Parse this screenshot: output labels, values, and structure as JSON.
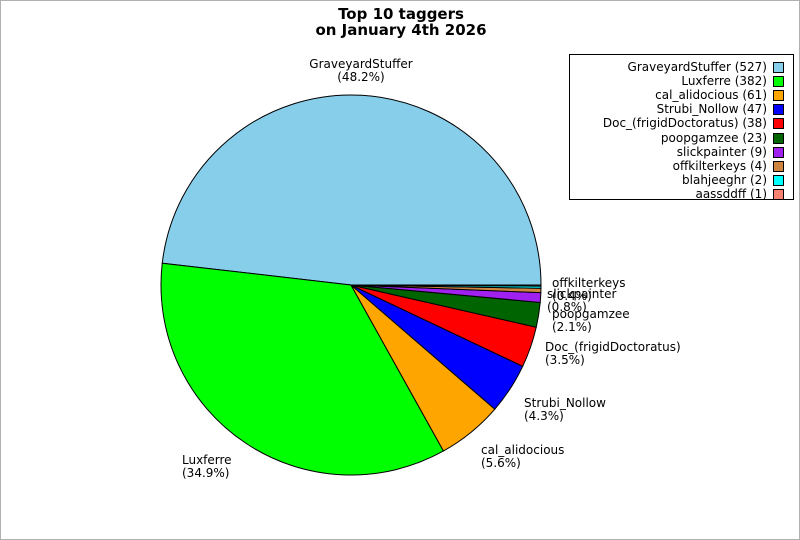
{
  "title": {
    "line1": "Top 10 taggers",
    "line2": "on January 4th 2026"
  },
  "chart_data": {
    "type": "pie",
    "title": "Top 10 taggers on January 4th 2026",
    "categories": [
      "GraveyardStuffer",
      "Luxferre",
      "cal_alidocious",
      "Strubi_Nollow",
      "Doc_(frigidDoctoratus)",
      "poopgamzee",
      "slickpainter",
      "offkilterkeys",
      "blahjeeghr",
      "aassddff"
    ],
    "values": [
      527,
      382,
      61,
      47,
      38,
      23,
      9,
      4,
      2,
      1
    ],
    "colors": [
      "#87CEEB",
      "#00FF00",
      "#FFA500",
      "#0000FF",
      "#FF0000",
      "#006400",
      "#A020F0",
      "#CD853F",
      "#00FFFF",
      "#FA8072"
    ],
    "start_angle_deg": 0,
    "direction": "counterclockwise",
    "legend_position": "top-right",
    "outline_color": "#000000"
  },
  "legend": {
    "items": [
      "GraveyardStuffer (527)",
      "Luxferre (382)",
      "cal_alidocious (61)",
      "Strubi_Nollow (47)",
      "Doc_(frigidDoctoratus) (38)",
      "poopgamzee (23)",
      "slickpainter (9)",
      "offkilterkeys (4)",
      "blahjeeghr (2)",
      "aassddff (1)"
    ]
  },
  "slice_labels": [
    {
      "name": "GraveyardStuffer",
      "pct": "(48.2%)"
    },
    {
      "name": "Luxferre",
      "pct": "(34.9%)"
    },
    {
      "name": "cal_alidocious",
      "pct": "(5.6%)"
    },
    {
      "name": "Strubi_Nollow",
      "pct": "(4.3%)"
    },
    {
      "name": "Doc_(frigidDoctoratus)",
      "pct": "(3.5%)"
    },
    {
      "name": "poopgamzee",
      "pct": "(2.1%)"
    },
    {
      "name": "slickpainter",
      "pct": "(0.8%)"
    },
    {
      "name": "offkilterkeys",
      "pct": "(0.4%)"
    }
  ]
}
